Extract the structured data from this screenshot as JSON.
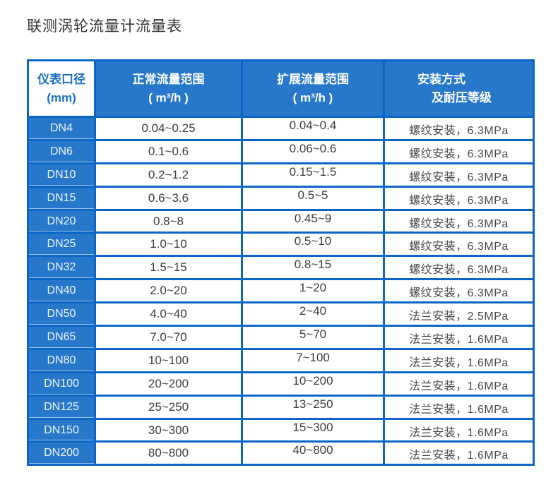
{
  "page": {
    "title": "联测涡轮流量计流量表"
  },
  "colors": {
    "cell_blue": "#2778cb",
    "border_blue": "#0c66c6",
    "header_text_blue": "#1a6fc6",
    "body_text": "#3d3d3d",
    "background": "#ffffff"
  },
  "chart_data": {
    "type": "table",
    "title": "联测涡轮流量计流量表",
    "columns": [
      {
        "label": "仪表口径",
        "sub": "(mm)"
      },
      {
        "label": "正常流量范围",
        "sub": "( m³/h )"
      },
      {
        "label": "扩展流量范围",
        "sub": "( m³/h )"
      },
      {
        "label": "安装方式",
        "sub": "及耐压等级"
      }
    ],
    "rows": [
      [
        "DN4",
        "0.04~0.25",
        "0.04~0.4",
        "螺纹安装，6.3MPa"
      ],
      [
        "DN6",
        "0.1~0.6",
        "0.06~0.6",
        "螺纹安装，6.3MPa"
      ],
      [
        "DN10",
        "0.2~1.2",
        "0.15~1.5",
        "螺纹安装，6.3MPa"
      ],
      [
        "DN15",
        "0.6~3.6",
        "0.5~5",
        "螺纹安装，6.3MPa"
      ],
      [
        "DN20",
        "0.8~8",
        "0.45~9",
        "螺纹安装，6.3MPa"
      ],
      [
        "DN25",
        "1.0~10",
        "0.5~10",
        "螺纹安装，6.3MPa"
      ],
      [
        "DN32",
        "1.5~15",
        "0.8~15",
        "螺纹安装，6.3MPa"
      ],
      [
        "DN40",
        "2.0~20",
        "1~20",
        "螺纹安装，6.3MPa"
      ],
      [
        "DN50",
        "4.0~40",
        "2~40",
        "法兰安装，2.5MPa"
      ],
      [
        "DN65",
        "7.0~70",
        "5~70",
        "法兰安装，1.6MPa"
      ],
      [
        "DN80",
        "10~100",
        "7~100",
        "法兰安装，1.6MPa"
      ],
      [
        "DN100",
        "20~200",
        "10~200",
        "法兰安装，1.6MPa"
      ],
      [
        "DN125",
        "25~250",
        "13~250",
        "法兰安装，1.6MPa"
      ],
      [
        "DN150",
        "30~300",
        "15~300",
        "法兰安装，1.6MPa"
      ],
      [
        "DN200",
        "80~800",
        "40~800",
        "法兰安装，1.6MPa"
      ]
    ]
  }
}
